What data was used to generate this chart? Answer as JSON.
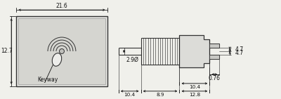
{
  "bg_color": "#f0f0eb",
  "line_color": "#333333",
  "dim_color": "#222222",
  "text_color": "#111111",
  "left_view": {
    "label_w": "21.6",
    "label_h": "12.7",
    "keyway_label": "Keyway"
  },
  "right_view": {
    "dim_top_left": "10.4",
    "dim_top_mid": "8.9",
    "dim_top_right": "12.8",
    "dim_body": "10.4",
    "dim_dia": "2.9Ø",
    "dim_pin1": "4.7",
    "dim_pin2": "4.7",
    "dim_pin_w": "0.76"
  }
}
